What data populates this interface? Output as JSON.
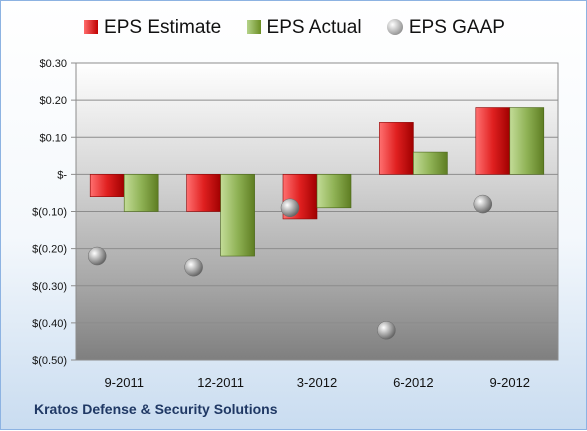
{
  "footer": {
    "company": "Kratos Defense & Security Solutions"
  },
  "legend": {
    "estimate": "EPS Estimate",
    "actual": "EPS Actual",
    "gaap": "EPS GAAP"
  },
  "colors": {
    "estimate": "#c00000",
    "actual": "#6b8e23",
    "gaap": "#8c8c8c",
    "plot_background": "#d9d9d9"
  },
  "chart_data": {
    "type": "bar",
    "title": "",
    "xlabel": "",
    "ylabel": "",
    "categories": [
      "9-2011",
      "12-2011",
      "3-2012",
      "6-2012",
      "9-2012"
    ],
    "series": [
      {
        "name": "EPS Estimate",
        "kind": "bar",
        "values": [
          -0.06,
          -0.1,
          -0.12,
          0.14,
          0.18
        ]
      },
      {
        "name": "EPS Actual",
        "kind": "bar",
        "values": [
          -0.1,
          -0.22,
          -0.09,
          0.06,
          0.18
        ]
      },
      {
        "name": "EPS GAAP",
        "kind": "marker",
        "values": [
          -0.22,
          -0.25,
          -0.09,
          -0.42,
          -0.08
        ]
      }
    ],
    "ylim": [
      -0.5,
      0.3
    ],
    "yticks": [
      0.3,
      0.2,
      0.1,
      0,
      -0.1,
      -0.2,
      -0.3,
      -0.4,
      -0.5
    ],
    "ytick_labels": [
      "$0.30",
      "$0.20",
      "$0.10",
      "$-",
      "$(0.10)",
      "$(0.20)",
      "$(0.30)",
      "$(0.40)",
      "$(0.50)"
    ],
    "grid": true,
    "legend_position": "top"
  }
}
